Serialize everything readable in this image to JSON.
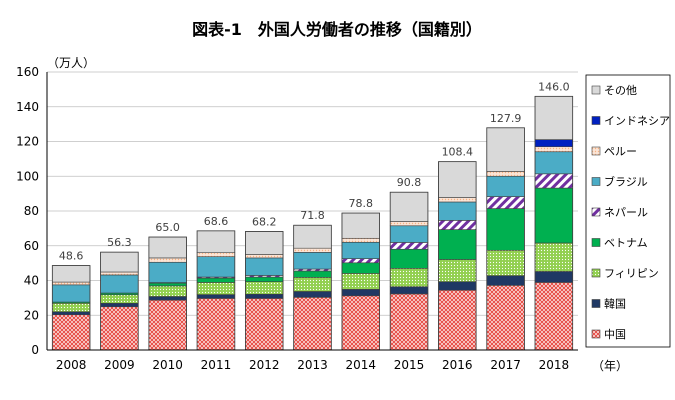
{
  "chart_data": {
    "type": "bar",
    "stacked": true,
    "title": "図表-1　外国人労働者の推移（国籍別）",
    "ylabel": "（万人）",
    "xlabel": "（年）",
    "ylim": [
      0,
      160
    ],
    "yticks": [
      "0",
      "20",
      "40",
      "60",
      "80",
      "100",
      "120",
      "140",
      "160"
    ],
    "grid": true,
    "legend_position": "right",
    "categories": [
      "2008",
      "2009",
      "2010",
      "2011",
      "2012",
      "2013",
      "2014",
      "2015",
      "2016",
      "2017",
      "2018"
    ],
    "totals": [
      48.6,
      56.3,
      65.0,
      68.6,
      68.2,
      71.8,
      78.8,
      90.8,
      108.4,
      127.9,
      146.0
    ],
    "total_labels": [
      "48.6",
      "56.3",
      "65.0",
      "68.6",
      "68.2",
      "71.8",
      "78.8",
      "90.8",
      "108.4",
      "127.9",
      "146.0"
    ],
    "series": [
      {
        "name": "中国",
        "color": "#e8514a",
        "pattern": "crosshatch",
        "values": [
          20.3,
          24.9,
          28.7,
          29.7,
          29.7,
          30.3,
          31.2,
          32.3,
          34.4,
          37.2,
          38.9
        ]
      },
      {
        "name": "韓国",
        "color": "#1f3864",
        "pattern": "solid",
        "values": [
          1.7,
          2.0,
          2.1,
          2.2,
          2.4,
          3.4,
          3.7,
          4.1,
          4.9,
          5.6,
          6.3
        ]
      },
      {
        "name": "フィリピン",
        "color": "#92d050",
        "pattern": "dotted",
        "values": [
          4.9,
          4.9,
          6.1,
          7.0,
          7.2,
          8.1,
          9.2,
          10.6,
          12.8,
          14.6,
          16.4
        ]
      },
      {
        "name": "ベトナム",
        "color": "#00b050",
        "pattern": "solid",
        "values": [
          0.7,
          1.0,
          1.6,
          2.5,
          2.7,
          3.7,
          6.1,
          11.0,
          17.2,
          24.0,
          31.6
        ]
      },
      {
        "name": "ネパール",
        "color": "#7030a0",
        "pattern": "stripes",
        "values": [
          0.0,
          0.0,
          0.3,
          0.6,
          0.9,
          1.1,
          2.4,
          3.9,
          5.3,
          6.9,
          8.2
        ]
      },
      {
        "name": "ブラジル",
        "color": "#4bacc6",
        "pattern": "solid",
        "values": [
          9.9,
          10.4,
          11.7,
          11.7,
          10.1,
          9.6,
          9.4,
          9.6,
          10.6,
          11.7,
          12.7
        ]
      },
      {
        "name": "ペルー",
        "color": "#f4b183",
        "pattern": "dotted",
        "values": [
          1.6,
          1.7,
          2.5,
          2.3,
          2.0,
          2.4,
          2.3,
          2.5,
          2.6,
          2.8,
          2.9
        ]
      },
      {
        "name": "インドネシア",
        "color": "#0020c0",
        "pattern": "solid",
        "values": [
          0.0,
          0.0,
          0.0,
          0.0,
          0.0,
          0.0,
          0.0,
          0.0,
          0.0,
          0.0,
          4.1
        ]
      },
      {
        "name": "その他",
        "color": "#d9d9d9",
        "pattern": "solid",
        "values": [
          9.5,
          11.4,
          12.0,
          12.6,
          13.2,
          13.2,
          14.5,
          16.8,
          20.6,
          25.1,
          24.9
        ]
      }
    ],
    "legend_order": [
      "その他",
      "インドネシア",
      "ペルー",
      "ブラジル",
      "ネパール",
      "ベトナム",
      "フィリピン",
      "韓国",
      "中国"
    ]
  }
}
